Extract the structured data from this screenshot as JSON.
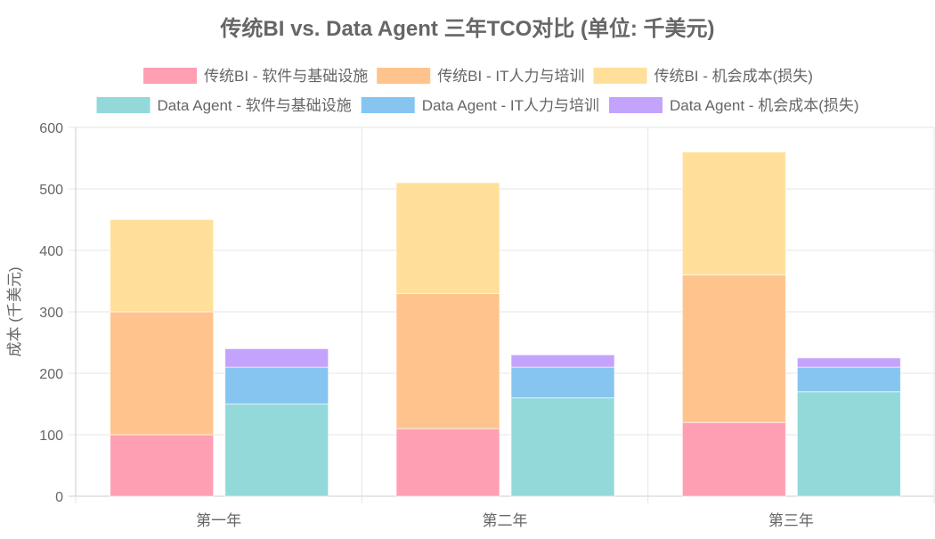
{
  "chart_data": {
    "type": "bar",
    "stacked": true,
    "title": "传统BI vs. Data Agent 三年TCO对比 (单位: 千美元)",
    "xlabel": "",
    "ylabel": "成本 (千美元)",
    "ylim": [
      0,
      600
    ],
    "yticks": [
      0,
      100,
      200,
      300,
      400,
      500,
      600
    ],
    "grid": true,
    "legend": "top",
    "categories": [
      "第一年",
      "第二年",
      "第三年"
    ],
    "series": [
      {
        "name": "传统BI - 软件与基础设施",
        "stack": "bi",
        "color": "#ff9fb3",
        "values": [
          100,
          110,
          120
        ]
      },
      {
        "name": "传统BI - IT人力与培训",
        "stack": "bi",
        "color": "#ffc38d",
        "values": [
          200,
          220,
          240
        ]
      },
      {
        "name": "传统BI - 机会成本(损失)",
        "stack": "bi",
        "color": "#ffdf99",
        "values": [
          150,
          180,
          200
        ]
      },
      {
        "name": "Data Agent - 软件与基础设施",
        "stack": "da",
        "color": "#93d9d9",
        "values": [
          150,
          160,
          170
        ]
      },
      {
        "name": "Data Agent - IT人力与培训",
        "stack": "da",
        "color": "#87c5f1",
        "values": [
          60,
          50,
          40
        ]
      },
      {
        "name": "Data Agent - 机会成本(损失)",
        "stack": "da",
        "color": "#c4a3fc",
        "values": [
          30,
          20,
          15
        ]
      }
    ]
  }
}
